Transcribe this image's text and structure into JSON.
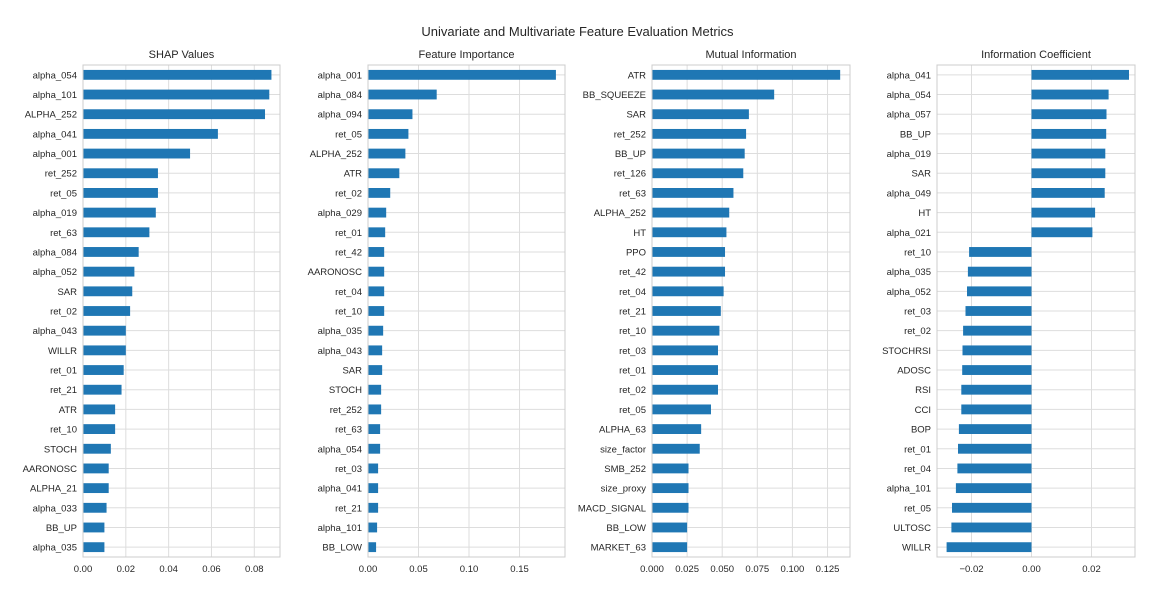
{
  "figure": {
    "title": "Univariate and Multivariate Feature Evaluation Metrics",
    "bar_color": "#1f77b4",
    "grid_color": "#dddddd",
    "frame_color": "#cccccc"
  },
  "chart_data": [
    {
      "type": "bar",
      "orientation": "horizontal",
      "title": "SHAP Values",
      "xlabel": "",
      "ylabel": "",
      "grid": true,
      "xlim": [
        0.0,
        0.092
      ],
      "xticks": [
        0.0,
        0.02,
        0.04,
        0.06,
        0.08
      ],
      "xtick_labels": [
        "0.00",
        "0.02",
        "0.04",
        "0.06",
        "0.08"
      ],
      "categories": [
        "alpha_054",
        "alpha_101",
        "ALPHA_252",
        "alpha_041",
        "alpha_001",
        "ret_252",
        "ret_05",
        "alpha_019",
        "ret_63",
        "alpha_084",
        "alpha_052",
        "SAR",
        "ret_02",
        "alpha_043",
        "WILLR",
        "ret_01",
        "ret_21",
        "ATR",
        "ret_10",
        "STOCH",
        "AARONOSC",
        "ALPHA_21",
        "alpha_033",
        "BB_UP",
        "alpha_035"
      ],
      "values": [
        0.088,
        0.087,
        0.085,
        0.063,
        0.05,
        0.035,
        0.035,
        0.034,
        0.031,
        0.026,
        0.024,
        0.023,
        0.022,
        0.02,
        0.02,
        0.019,
        0.018,
        0.015,
        0.015,
        0.013,
        0.012,
        0.012,
        0.011,
        0.01,
        0.01
      ]
    },
    {
      "type": "bar",
      "orientation": "horizontal",
      "title": "Feature Importance",
      "xlabel": "",
      "ylabel": "",
      "grid": true,
      "xlim": [
        0.0,
        0.195
      ],
      "xticks": [
        0.0,
        0.05,
        0.1,
        0.15
      ],
      "xtick_labels": [
        "0.00",
        "0.05",
        "0.10",
        "0.15"
      ],
      "categories": [
        "alpha_001",
        "alpha_084",
        "alpha_094",
        "ret_05",
        "ALPHA_252",
        "ATR",
        "ret_02",
        "alpha_029",
        "ret_01",
        "ret_42",
        "AARONOSC",
        "ret_04",
        "ret_10",
        "alpha_035",
        "alpha_043",
        "SAR",
        "STOCH",
        "ret_252",
        "ret_63",
        "alpha_054",
        "ret_03",
        "alpha_041",
        "ret_21",
        "alpha_101",
        "BB_LOW"
      ],
      "values": [
        0.186,
        0.068,
        0.044,
        0.04,
        0.037,
        0.031,
        0.022,
        0.018,
        0.017,
        0.016,
        0.016,
        0.016,
        0.016,
        0.015,
        0.014,
        0.014,
        0.013,
        0.013,
        0.012,
        0.012,
        0.01,
        0.01,
        0.01,
        0.009,
        0.008
      ]
    },
    {
      "type": "bar",
      "orientation": "horizontal",
      "title": "Mutual Information",
      "xlabel": "",
      "ylabel": "",
      "grid": true,
      "xlim": [
        0.0,
        0.141
      ],
      "xticks": [
        0.0,
        0.025,
        0.05,
        0.075,
        0.1,
        0.125
      ],
      "xtick_labels": [
        "0.000",
        "0.025",
        "0.050",
        "0.075",
        "0.100",
        "0.125"
      ],
      "categories": [
        "ATR",
        "BB_SQUEEZE",
        "SAR",
        "ret_252",
        "BB_UP",
        "ret_126",
        "ret_63",
        "ALPHA_252",
        "HT",
        "PPO",
        "ret_42",
        "ret_04",
        "ret_21",
        "ret_10",
        "ret_03",
        "ret_01",
        "ret_02",
        "ret_05",
        "ALPHA_63",
        "size_factor",
        "SMB_252",
        "size_proxy",
        "MACD_SIGNAL",
        "BB_LOW",
        "MARKET_63"
      ],
      "values": [
        0.134,
        0.087,
        0.069,
        0.067,
        0.066,
        0.065,
        0.058,
        0.055,
        0.053,
        0.052,
        0.052,
        0.051,
        0.049,
        0.048,
        0.047,
        0.047,
        0.047,
        0.042,
        0.035,
        0.034,
        0.026,
        0.026,
        0.026,
        0.025,
        0.025
      ]
    },
    {
      "type": "bar",
      "orientation": "horizontal",
      "title": "Information Coefficient",
      "xlabel": "",
      "ylabel": "",
      "grid": true,
      "xlim": [
        -0.0315,
        0.0345
      ],
      "xticks": [
        -0.02,
        0.0,
        0.02
      ],
      "xtick_labels": [
        "−0.02",
        "0.00",
        "0.02"
      ],
      "categories": [
        "alpha_041",
        "alpha_054",
        "alpha_057",
        "BB_UP",
        "alpha_019",
        "SAR",
        "alpha_049",
        "HT",
        "alpha_021",
        "ret_10",
        "alpha_035",
        "alpha_052",
        "ret_03",
        "ret_02",
        "STOCHRSI",
        "ADOSC",
        "RSI",
        "CCI",
        "BOP",
        "ret_01",
        "ret_04",
        "alpha_101",
        "ret_05",
        "ULTOSC",
        "WILLR"
      ],
      "values": [
        0.0325,
        0.0257,
        0.025,
        0.0249,
        0.0246,
        0.0246,
        0.0244,
        0.0212,
        0.0203,
        -0.0208,
        -0.0212,
        -0.0215,
        -0.022,
        -0.0228,
        -0.023,
        -0.0231,
        -0.0234,
        -0.0234,
        -0.0242,
        -0.0245,
        -0.0247,
        -0.0252,
        -0.0265,
        -0.0267,
        -0.0283
      ]
    }
  ]
}
